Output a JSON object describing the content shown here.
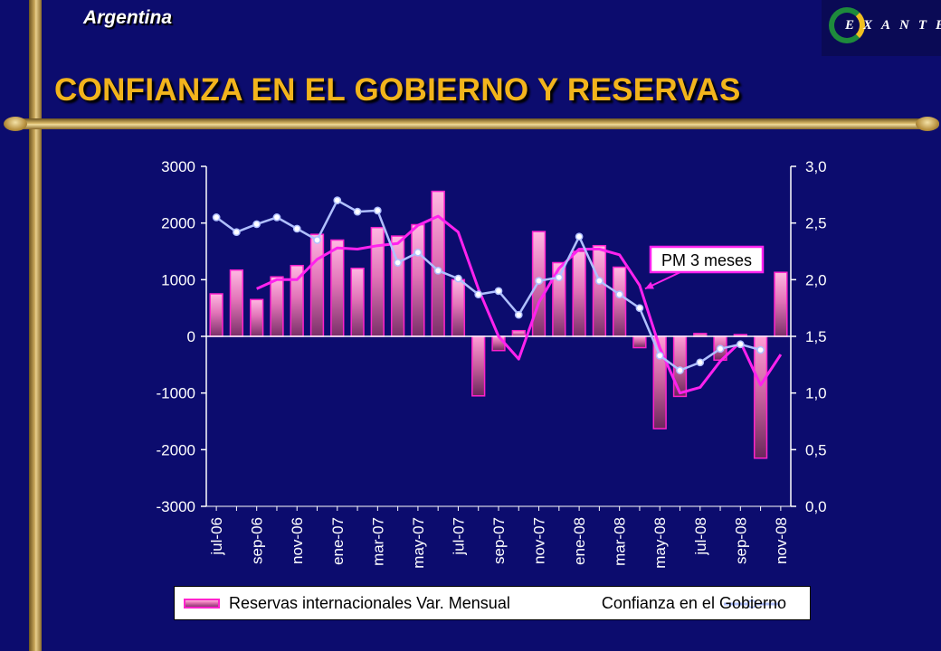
{
  "header": {
    "country": "Argentina",
    "title": "CONFIANZA EN EL GOBIERNO Y RESERVAS",
    "logo_text": "EXANTE"
  },
  "colors": {
    "background": "#0c0c6e",
    "title": "#f2b41c",
    "bar_fill_light": "#ffb0dc",
    "bar_fill_dark": "#7a3068",
    "bar_outline": "#ff22cc",
    "confidence_line": "#b0c0ff",
    "moving_average_line": "#ff22ee",
    "axis": "#ffffff"
  },
  "chart_data": {
    "type": "bar",
    "categories": [
      "jul-06",
      "ago-06",
      "sep-06",
      "oct-06",
      "nov-06",
      "dic-06",
      "ene-07",
      "feb-07",
      "mar-07",
      "abr-07",
      "may-07",
      "jun-07",
      "jul-07",
      "ago-07",
      "sep-07",
      "oct-07",
      "nov-07",
      "dic-07",
      "ene-08",
      "feb-08",
      "mar-08",
      "abr-08",
      "may-08",
      "jun-08",
      "jul-08",
      "ago-08",
      "sep-08",
      "oct-08",
      "nov-08"
    ],
    "x_tick_labels": [
      "jul-06",
      "sep-06",
      "nov-06",
      "ene-07",
      "mar-07",
      "may-07",
      "jul-07",
      "sep-07",
      "nov-07",
      "ene-08",
      "mar-08",
      "may-08",
      "jul-08",
      "sep-08",
      "nov-08"
    ],
    "y_left": {
      "ylim": [
        -3000,
        3000
      ],
      "ticks": [
        "3000",
        "2000",
        "1000",
        "0",
        "-1000",
        "-2000",
        "-3000"
      ],
      "tick_values": [
        3000,
        2000,
        1000,
        0,
        -1000,
        -2000,
        -3000
      ]
    },
    "y_right": {
      "ylim": [
        0.0,
        3.0
      ],
      "ticks": [
        "3,0",
        "2,5",
        "2,0",
        "1,5",
        "1,0",
        "0,5",
        "0,0"
      ],
      "tick_values": [
        3.0,
        2.5,
        2.0,
        1.5,
        1.0,
        0.5,
        0.0
      ]
    },
    "series": [
      {
        "name": "Reservas internacionales Var. Mensual",
        "kind": "bar",
        "axis": "left",
        "values": [
          750,
          1170,
          650,
          1050,
          1250,
          1800,
          1700,
          1200,
          1920,
          1770,
          1970,
          2560,
          1000,
          -1050,
          -250,
          100,
          1850,
          1300,
          1500,
          1600,
          1220,
          -200,
          -1630,
          -1060,
          50,
          -420,
          30,
          -2150,
          1130
        ]
      },
      {
        "name": "Confianza en el Gobierno",
        "kind": "line-markers",
        "axis": "right",
        "values": [
          2.55,
          2.42,
          2.49,
          2.55,
          2.45,
          2.35,
          2.7,
          2.6,
          2.61,
          2.15,
          2.24,
          2.08,
          2.01,
          1.87,
          1.9,
          1.69,
          1.99,
          2.02,
          2.38,
          1.99,
          1.87,
          1.75,
          1.33,
          1.2,
          1.27,
          1.39,
          1.43,
          1.38,
          null
        ]
      },
      {
        "name": "PM 3 meses",
        "kind": "line",
        "axis": "right",
        "values": [
          null,
          null,
          1.92,
          2.0,
          2.0,
          2.18,
          2.28,
          2.27,
          2.3,
          2.32,
          2.48,
          2.56,
          2.42,
          1.92,
          1.5,
          1.3,
          1.8,
          2.1,
          2.27,
          2.27,
          2.22,
          1.95,
          1.4,
          1.0,
          1.05,
          1.28,
          1.45,
          1.07,
          1.34
        ]
      }
    ],
    "annotation": "PM 3 meses",
    "legend_position": "bottom",
    "grid": false
  }
}
